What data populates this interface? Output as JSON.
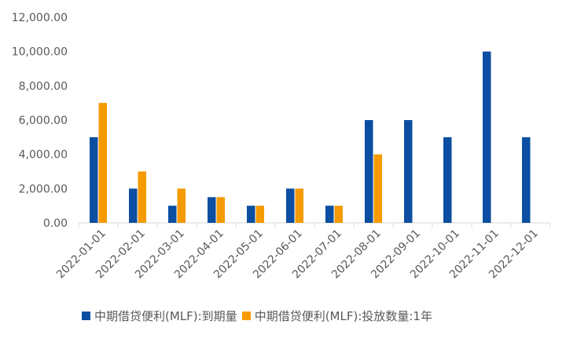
{
  "chart_data": {
    "type": "bar",
    "categories": [
      "2022-01-01",
      "2022-02-01",
      "2022-03-01",
      "2022-04-01",
      "2022-05-01",
      "2022-06-01",
      "2022-07-01",
      "2022-08-01",
      "2022-09-01",
      "2022-10-01",
      "2022-11-01",
      "2022-12-01"
    ],
    "series": [
      {
        "name": "中期借贷便利(MLF):到期量",
        "color": "#0b4ea2",
        "values": [
          5000,
          2000,
          1000,
          1500,
          1000,
          2000,
          1000,
          6000,
          6000,
          5000,
          10000,
          5000
        ]
      },
      {
        "name": "中期借贷便利(MLF):投放数量:1年",
        "color": "#f59a00",
        "values": [
          7000,
          3000,
          2000,
          1500,
          1000,
          2000,
          1000,
          4000,
          null,
          null,
          null,
          null
        ]
      }
    ],
    "y_ticks": [
      "0.00",
      "2,000.00",
      "4,000.00",
      "6,000.00",
      "8,000.00",
      "10,000.00",
      "12,000.00"
    ],
    "ylim": [
      0,
      12000
    ],
    "grid": false,
    "legend_position": "bottom",
    "title": "",
    "xlabel": "",
    "ylabel": ""
  }
}
